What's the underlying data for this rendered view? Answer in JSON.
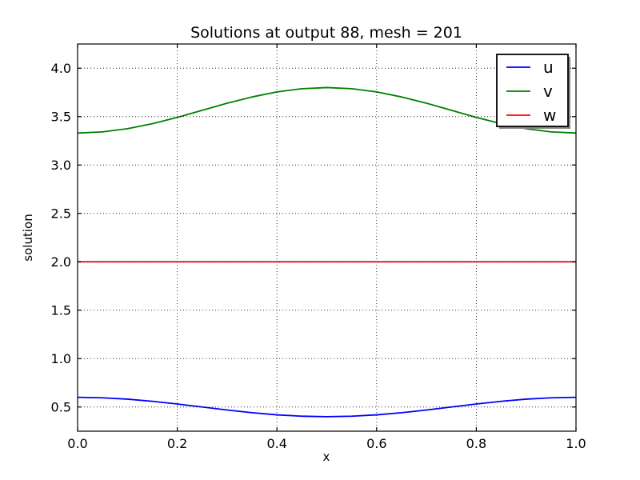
{
  "figure": {
    "background": "#ffffff",
    "axes_background": "#ffffff",
    "spine_color": "#000000",
    "grid_color": "#000000",
    "shadow_color": "#888888"
  },
  "chart_data": {
    "type": "line",
    "title": "Solutions at output 88, mesh = 201",
    "xlabel": "x",
    "ylabel": "solution",
    "xlim": [
      0.0,
      1.0
    ],
    "ylim": [
      0.25,
      4.25
    ],
    "xticks": [
      0.0,
      0.2,
      0.4,
      0.6,
      0.8,
      1.0
    ],
    "yticks": [
      0.5,
      1.0,
      1.5,
      2.0,
      2.5,
      3.0,
      3.5,
      4.0
    ],
    "grid": true,
    "grid_style": "dotted",
    "grid_above_data": true,
    "legend_position": "upper right",
    "legend_shadow": true,
    "x": [
      0.0,
      0.05,
      0.1,
      0.15,
      0.2,
      0.25,
      0.3,
      0.35,
      0.4,
      0.45,
      0.5,
      0.55,
      0.6,
      0.65,
      0.7,
      0.75,
      0.8,
      0.85,
      0.9,
      0.95,
      1.0
    ],
    "series": [
      {
        "name": "u",
        "color": "#0000ff",
        "values": [
          0.6,
          0.595,
          0.581,
          0.559,
          0.531,
          0.5,
          0.469,
          0.441,
          0.419,
          0.405,
          0.4,
          0.405,
          0.419,
          0.441,
          0.469,
          0.5,
          0.531,
          0.559,
          0.581,
          0.595,
          0.6
        ]
      },
      {
        "name": "v",
        "color": "#008000",
        "values": [
          3.33,
          3.342,
          3.375,
          3.427,
          3.492,
          3.565,
          3.638,
          3.703,
          3.755,
          3.788,
          3.8,
          3.788,
          3.755,
          3.703,
          3.638,
          3.565,
          3.492,
          3.427,
          3.375,
          3.342,
          3.33
        ]
      },
      {
        "name": "w",
        "color": "#ff0000",
        "values": [
          2.0,
          2.0,
          2.0,
          2.0,
          2.0,
          2.0,
          2.0,
          2.0,
          2.0,
          2.0,
          2.0,
          2.0,
          2.0,
          2.0,
          2.0,
          2.0,
          2.0,
          2.0,
          2.0,
          2.0,
          2.0
        ]
      }
    ]
  }
}
